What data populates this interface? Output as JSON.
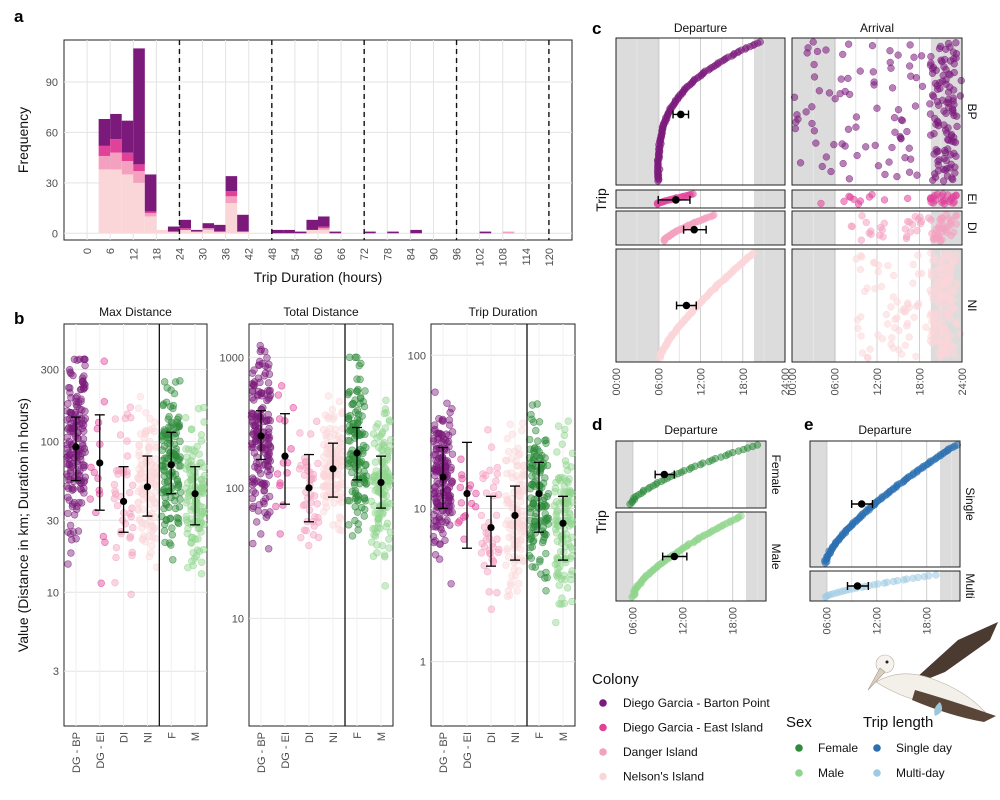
{
  "panel_letters": [
    "a",
    "b",
    "c",
    "d",
    "e"
  ],
  "colors": {
    "DG-BP": "#7b1a7b",
    "DG-EI": "#e0429a",
    "DI": "#f4a0bf",
    "NI": "#fbd6d9",
    "Female": "#2e8b3c",
    "Male": "#90d58d",
    "Single": "#2a6fb0",
    "Multi": "#9ecbe3",
    "point": "#000000"
  },
  "chart_data": [
    {
      "id": "a",
      "type": "bar",
      "stacked": true,
      "xlabel": "Trip Duration (hours)",
      "ylabel": "Frequency",
      "xlim": [
        -6,
        126
      ],
      "ylim": [
        -4,
        115
      ],
      "binwidth": 3,
      "x_ticks": [
        "0",
        "6",
        "12",
        "18",
        "24",
        "30",
        "36",
        "42",
        "48",
        "54",
        "60",
        "66",
        "72",
        "78",
        "84",
        "90",
        "96",
        "102",
        "108",
        "114",
        "120"
      ],
      "y_ticks": [
        "0",
        "30",
        "60",
        "90"
      ],
      "day_lines_hours": [
        24,
        48,
        72,
        96,
        120
      ],
      "bin_starts": [
        3,
        6,
        9,
        12,
        15,
        18,
        21,
        24,
        27,
        30,
        33,
        36,
        39,
        48,
        51,
        54,
        57,
        60,
        63,
        72,
        78,
        84,
        102,
        108
      ],
      "series": [
        {
          "name": "Nelson's Island",
          "color_key": "NI",
          "values": [
            38,
            38,
            35,
            30,
            10,
            2,
            1,
            2,
            1,
            2,
            1,
            18,
            1,
            0,
            0,
            0,
            2,
            2,
            0,
            0,
            0,
            0,
            0,
            0
          ]
        },
        {
          "name": "Danger Island",
          "color_key": "DI",
          "values": [
            8,
            10,
            8,
            7,
            2,
            0,
            0,
            0,
            0,
            1,
            0,
            4,
            0,
            0,
            0,
            0,
            0,
            1,
            0,
            0,
            0,
            0,
            0,
            1
          ]
        },
        {
          "name": "Diego Garcia - East Island",
          "color_key": "DG-EI",
          "values": [
            6,
            8,
            5,
            4,
            1,
            0,
            0,
            1,
            0,
            0,
            0,
            3,
            0,
            0,
            0,
            0,
            0,
            1,
            0,
            0,
            0,
            0,
            0,
            0
          ]
        },
        {
          "name": "Diego Garcia - Barton Point",
          "color_key": "DG-BP",
          "values": [
            16,
            15,
            19,
            69,
            22,
            0,
            3,
            5,
            1,
            3,
            4,
            9,
            10,
            2,
            2,
            1,
            6,
            6,
            1,
            1,
            1,
            2,
            1,
            0
          ]
        }
      ]
    },
    {
      "id": "b",
      "type": "scatter",
      "ylabel": "Value (Distance in km; Duration in hours)",
      "y_scale": "log10",
      "categories": [
        "DG - BP",
        "DG - EI",
        "DI",
        "NI",
        "F",
        "M"
      ],
      "category_color_keys": [
        "DG-BP",
        "DG-EI",
        "DI",
        "NI",
        "Female",
        "Male"
      ],
      "facets": [
        {
          "strip": "Max Distance",
          "ylim": [
            1.3,
            600
          ],
          "y_ticks": [
            3,
            10,
            30,
            100,
            300
          ],
          "y_tick_labels": [
            "3",
            "10",
            "30",
            "100",
            "300"
          ],
          "means": [
            92,
            72,
            40,
            50,
            70,
            45
          ],
          "lower": [
            55,
            35,
            25,
            32,
            45,
            28
          ],
          "upper": [
            145,
            150,
            68,
            80,
            115,
            68
          ],
          "point_ranges": [
            [
              1.8,
              350
            ],
            [
              2.2,
              340
            ],
            [
              1.6,
              330
            ],
            [
              4,
              300
            ],
            [
              1.9,
              350
            ],
            [
              5,
              340
            ]
          ],
          "n_points": [
            170,
            15,
            40,
            120,
            130,
            120
          ]
        },
        {
          "strip": "Total Distance",
          "ylim": [
            1.5,
            1800
          ],
          "y_ticks": [
            10,
            100,
            1000
          ],
          "y_tick_labels": [
            "10",
            "100",
            "1000"
          ],
          "means": [
            250,
            175,
            100,
            140,
            185,
            110
          ],
          "lower": [
            165,
            75,
            55,
            85,
            115,
            70
          ],
          "upper": [
            390,
            370,
            180,
            220,
            290,
            175
          ],
          "point_ranges": [
            [
              2.0,
              1400
            ],
            [
              2.5,
              900
            ],
            [
              8,
              700
            ],
            [
              8,
              600
            ],
            [
              2.2,
              1000
            ],
            [
              5,
              900
            ]
          ],
          "n_points": [
            170,
            15,
            40,
            120,
            130,
            120
          ]
        },
        {
          "strip": "Trip Duration",
          "ylim": [
            0.38,
            160
          ],
          "y_ticks": [
            1,
            10,
            100
          ],
          "y_tick_labels": [
            "1",
            "10",
            "100"
          ],
          "means": [
            16,
            12.5,
            7.5,
            9,
            12.5,
            8
          ],
          "lower": [
            10,
            5.5,
            4.2,
            4.6,
            7,
            4.6
          ],
          "upper": [
            25,
            27,
            12,
            14,
            20,
            12
          ],
          "point_ranges": [
            [
              0.8,
              100
            ],
            [
              2,
              70
            ],
            [
              0.5,
              110
            ],
            [
              0.4,
              70
            ],
            [
              0.5,
              80
            ],
            [
              0.45,
              75
            ]
          ],
          "n_points": [
            170,
            15,
            40,
            120,
            130,
            120
          ]
        }
      ],
      "separator_after_category": "NI"
    },
    {
      "id": "c",
      "type": "scatter",
      "ylabel": "Trip",
      "x_ticks": [
        "00:00",
        "06:00",
        "12:00",
        "18:00",
        "24:00"
      ],
      "x_range_hours": [
        0,
        24
      ],
      "columns": [
        "Departure",
        "Arrival"
      ],
      "rows": [
        "BP",
        "EI",
        "DI",
        "NI"
      ],
      "row_color_keys": [
        "DG-BP",
        "DG-EI",
        "DI",
        "NI"
      ],
      "night_shade_hours": [
        [
          0,
          6.2
        ],
        [
          19.6,
          24
        ]
      ],
      "departure_means_hours": [
        9.2,
        8.5,
        11.1,
        10.0
      ],
      "departure_err_hours": [
        [
          8.1,
          10.3
        ],
        [
          6.0,
          10.5
        ],
        [
          9.6,
          12.8
        ],
        [
          8.6,
          11.4
        ]
      ],
      "departure_range_hours": [
        [
          6.0,
          20.5
        ],
        [
          5.8,
          11.0
        ],
        [
          6.8,
          14.0
        ],
        [
          6.2,
          19.5
        ]
      ],
      "arrival_range_hours": [
        [
          0.2,
          24
        ],
        [
          3.0,
          24
        ],
        [
          8.0,
          24
        ],
        [
          9.0,
          24
        ]
      ]
    },
    {
      "id": "d",
      "type": "scatter",
      "ylabel": "Trip",
      "strip": "Departure",
      "x_ticks": [
        "06:00",
        "12:00",
        "18:00"
      ],
      "x_range_hours": [
        4.0,
        22.0
      ],
      "rows": [
        "Female",
        "Male"
      ],
      "row_color_keys": [
        "Female",
        "Male"
      ],
      "night_shade_hours": [
        [
          4.0,
          6.1
        ],
        [
          19.6,
          22.0
        ]
      ],
      "means_hours": [
        9.8,
        11.0
      ],
      "err_hours": [
        [
          8.7,
          11.0
        ],
        [
          9.6,
          12.5
        ]
      ],
      "point_range_hours": [
        [
          5.8,
          21.0
        ],
        [
          6.0,
          19.0
        ]
      ]
    },
    {
      "id": "e",
      "type": "scatter",
      "strip": "Departure",
      "x_ticks": [
        "06:00",
        "12:00",
        "18:00"
      ],
      "x_range_hours": [
        4.0,
        22.0
      ],
      "rows": [
        "Single",
        "Multi"
      ],
      "row_color_keys": [
        "Single",
        "Multi"
      ],
      "night_shade_hours": [
        [
          4.0,
          6.1
        ],
        [
          19.6,
          22.0
        ]
      ],
      "means_hours": [
        10.2,
        9.7
      ],
      "err_hours": [
        [
          9.0,
          11.5
        ],
        [
          8.5,
          11.0
        ]
      ],
      "point_range_hours": [
        [
          5.8,
          21.5
        ],
        [
          5.9,
          19.0
        ]
      ]
    }
  ],
  "legend_colony": {
    "title": "Colony",
    "items": [
      {
        "label": "Diego Garcia - Barton Point",
        "color_key": "DG-BP"
      },
      {
        "label": "Diego Garcia - East Island",
        "color_key": "DG-EI"
      },
      {
        "label": "Danger Island",
        "color_key": "DI"
      },
      {
        "label": "Nelson's Island",
        "color_key": "NI"
      }
    ]
  },
  "legend_sex": {
    "title": "Sex",
    "items": [
      {
        "label": "Female",
        "color_key": "Female"
      },
      {
        "label": "Male",
        "color_key": "Male"
      }
    ]
  },
  "legend_trip": {
    "title": "Trip length",
    "items": [
      {
        "label": "Single day",
        "color_key": "Single"
      },
      {
        "label": "Multi-day",
        "color_key": "Multi"
      }
    ]
  },
  "illustration": {
    "name": "seabird"
  }
}
